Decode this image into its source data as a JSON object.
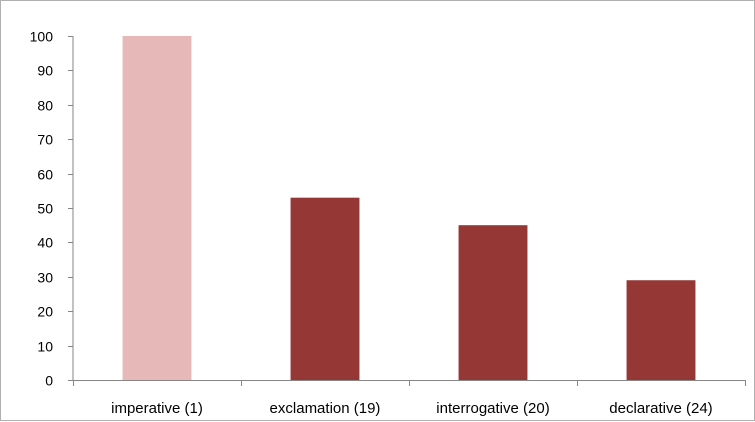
{
  "chart_data": {
    "type": "bar",
    "categories": [
      "imperative (1)",
      "exclamation (19)",
      "interrogative (20)",
      "declarative (24)"
    ],
    "values": [
      100,
      53,
      45,
      29
    ],
    "title": "",
    "xlabel": "",
    "ylabel": "",
    "ylim": [
      0,
      100
    ],
    "yticks": [
      0,
      10,
      20,
      30,
      40,
      50,
      60,
      70,
      80,
      90,
      100
    ],
    "grid": false,
    "legend": "none",
    "colors": {
      "highlight": "#E6B8B7",
      "default": "#953735",
      "axis": "#868686"
    },
    "highlight_index": 0
  }
}
